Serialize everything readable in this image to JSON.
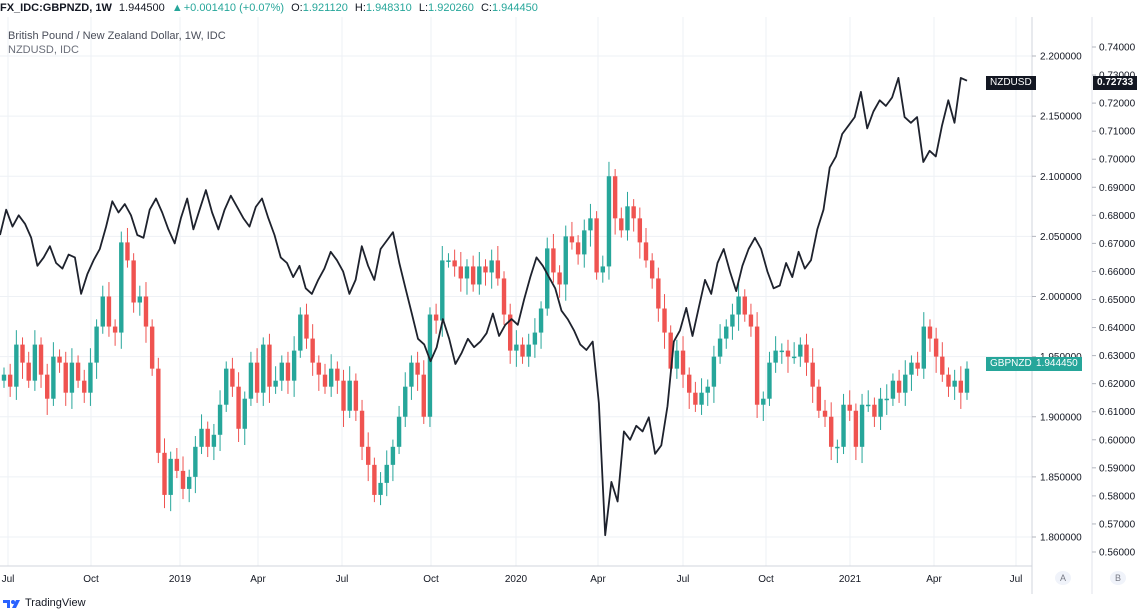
{
  "header": {
    "symbol": "FX_IDC:GBPNZD, 1W",
    "last": "1.944500",
    "change": "+0.001410 (+0.07%)",
    "o_label": "O:",
    "o": "1.921120",
    "h_label": "H:",
    "h": "1.948310",
    "l_label": "L:",
    "l": "1.920260",
    "c_label": "C:",
    "c": "1.944450"
  },
  "legend": {
    "title": "British Pound / New Zealand Dollar, 1W, IDC",
    "overlay": "NZDUSD, IDC"
  },
  "tags": {
    "nzdusd_name": "NZDUSD",
    "nzdusd_value": "0.72733",
    "gbpnzd_name": "GBPNZD",
    "gbpnzd_value": "1.944450"
  },
  "footer": {
    "brand": "TradingView"
  },
  "scale_buttons": {
    "a": "A",
    "b": "B"
  },
  "colors": {
    "up": "#26a69a",
    "down": "#ef5350",
    "line": "#1e222d",
    "grid": "#eef1f5",
    "tag_green": "#26a69a",
    "tag_dark": "#131722"
  },
  "chart_data": [
    {
      "type": "candlestick",
      "series_name": "GBPNZD",
      "x_labels": [
        "Jul",
        "Oct",
        "2019",
        "Apr",
        "Jul",
        "Oct",
        "2020",
        "Apr",
        "Jul",
        "Oct",
        "2021",
        "Apr",
        "Jul"
      ],
      "y_ticks": [
        "1.800000",
        "1.850000",
        "1.900000",
        "1.950000",
        "2.000000",
        "2.050000",
        "2.100000",
        "2.150000",
        "2.200000"
      ],
      "ylim": [
        1.78,
        2.225
      ],
      "closes": [
        1.935,
        1.925,
        1.96,
        1.945,
        1.93,
        1.96,
        1.935,
        1.915,
        1.95,
        1.945,
        1.92,
        1.945,
        1.93,
        1.92,
        1.945,
        1.975,
        2.0,
        1.975,
        1.97,
        2.045,
        2.03,
        1.995,
        2.0,
        1.975,
        1.94,
        1.87,
        1.835,
        1.865,
        1.855,
        1.84,
        1.85,
        1.875,
        1.89,
        1.875,
        1.885,
        1.91,
        1.94,
        1.925,
        1.89,
        1.915,
        1.945,
        1.92,
        1.96,
        1.925,
        1.93,
        1.945,
        1.93,
        1.955,
        1.985,
        1.965,
        1.945,
        1.935,
        1.925,
        1.94,
        1.93,
        1.905,
        1.93,
        1.905,
        1.875,
        1.86,
        1.835,
        1.845,
        1.86,
        1.875,
        1.9,
        1.925,
        1.945,
        1.935,
        1.9,
        1.985,
        1.98,
        2.03,
        2.03,
        2.025,
        2.015,
        2.025,
        2.01,
        2.025,
        2.02,
        2.03,
        2.015,
        1.985,
        1.955,
        1.96,
        1.95,
        1.96,
        1.97,
        1.99,
        2.04,
        2.02,
        2.01,
        2.05,
        2.045,
        2.035,
        2.055,
        2.065,
        2.02,
        2.025,
        2.1,
        2.065,
        2.055,
        2.075,
        2.065,
        2.045,
        2.03,
        2.015,
        1.99,
        1.97,
        1.94,
        1.955,
        1.935,
        1.92,
        1.91,
        1.92,
        1.925,
        1.95,
        1.965,
        1.975,
        1.985,
        2.0,
        1.985,
        1.975,
        1.91,
        1.915,
        1.945,
        1.955,
        1.955,
        1.95,
        1.95,
        1.96,
        1.945,
        1.925,
        1.905,
        1.9,
        1.875,
        1.875,
        1.91,
        1.905,
        1.875,
        1.91,
        1.91,
        1.9,
        1.915,
        1.915,
        1.93,
        1.92,
        1.935,
        1.945,
        1.94,
        1.975,
        1.965,
        1.95,
        1.935,
        1.925,
        1.93,
        1.92,
        1.94
      ],
      "xlim_labels_unit": "weekly candles"
    },
    {
      "type": "line",
      "series_name": "NZDUSD",
      "y_ticks": [
        "0.56000",
        "0.57000",
        "0.58000",
        "0.59000",
        "0.60000",
        "0.61000",
        "0.62000",
        "0.63000",
        "0.64000",
        "0.65000",
        "0.66000",
        "0.67000",
        "0.68000",
        "0.69000",
        "0.70000",
        "0.71000",
        "0.72000",
        "0.73000",
        "0.74000"
      ],
      "ylim": [
        0.555,
        0.7425
      ],
      "values": [
        0.673,
        0.682,
        0.676,
        0.68,
        0.677,
        0.672,
        0.662,
        0.665,
        0.669,
        0.663,
        0.661,
        0.666,
        0.665,
        0.652,
        0.659,
        0.664,
        0.668,
        0.676,
        0.685,
        0.681,
        0.684,
        0.68,
        0.673,
        0.672,
        0.682,
        0.686,
        0.681,
        0.675,
        0.67,
        0.679,
        0.686,
        0.675,
        0.682,
        0.689,
        0.681,
        0.675,
        0.682,
        0.687,
        0.683,
        0.679,
        0.676,
        0.683,
        0.686,
        0.679,
        0.673,
        0.665,
        0.663,
        0.658,
        0.662,
        0.654,
        0.652,
        0.657,
        0.661,
        0.667,
        0.664,
        0.66,
        0.652,
        0.657,
        0.669,
        0.662,
        0.657,
        0.668,
        0.671,
        0.674,
        0.663,
        0.654,
        0.645,
        0.636,
        0.634,
        0.628,
        0.633,
        0.643,
        0.636,
        0.627,
        0.631,
        0.636,
        0.633,
        0.635,
        0.638,
        0.645,
        0.637,
        0.641,
        0.643,
        0.641,
        0.65,
        0.658,
        0.665,
        0.662,
        0.658,
        0.654,
        0.646,
        0.643,
        0.639,
        0.634,
        0.632,
        0.635,
        0.613,
        0.566,
        0.585,
        0.578,
        0.603,
        0.6,
        0.605,
        0.603,
        0.608,
        0.595,
        0.598,
        0.612,
        0.635,
        0.639,
        0.647,
        0.637,
        0.647,
        0.657,
        0.652,
        0.663,
        0.668,
        0.66,
        0.653,
        0.662,
        0.668,
        0.672,
        0.668,
        0.66,
        0.654,
        0.655,
        0.663,
        0.658,
        0.667,
        0.661,
        0.664,
        0.675,
        0.682,
        0.697,
        0.701,
        0.709,
        0.712,
        0.715,
        0.724,
        0.711,
        0.717,
        0.721,
        0.719,
        0.722,
        0.729,
        0.715,
        0.713,
        0.715,
        0.699,
        0.703,
        0.701,
        0.712,
        0.721,
        0.713,
        0.729,
        0.728
      ]
    }
  ]
}
